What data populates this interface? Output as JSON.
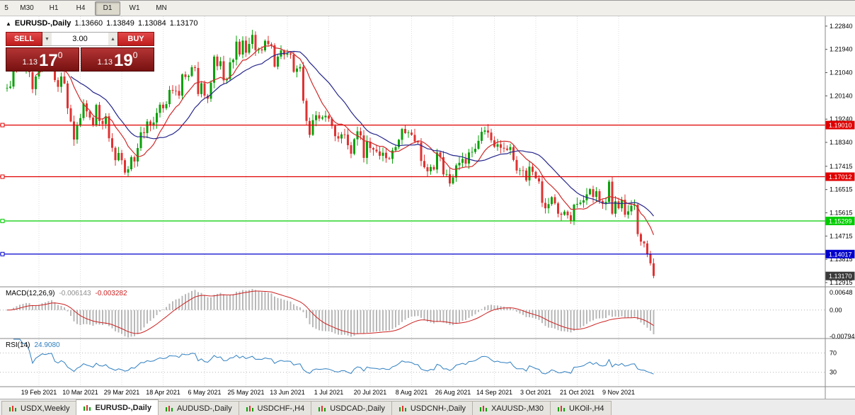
{
  "toolbar": {
    "timeframes": [
      {
        "label": "5",
        "active": false
      },
      {
        "label": "M30",
        "active": false
      },
      {
        "label": "H1",
        "active": false
      },
      {
        "label": "H4",
        "active": false
      },
      {
        "label": "D1",
        "active": true
      },
      {
        "label": "W1",
        "active": false
      },
      {
        "label": "MN",
        "active": false
      }
    ]
  },
  "chart_header": {
    "icon": "▲",
    "title": "EURUSD-,Daily",
    "open": "1.13660",
    "high": "1.13849",
    "low": "1.13084",
    "close": "1.13170"
  },
  "trade_widget": {
    "sell_label": "SELL",
    "buy_label": "BUY",
    "volume": "3.00",
    "spinner_down": "▼",
    "spinner_up": "▲",
    "sell_price": {
      "big": "1.13",
      "pips": "17",
      "pipette": "0"
    },
    "buy_price": {
      "big": "1.13",
      "pips": "19",
      "pipette": "0"
    }
  },
  "price_axis_ticks": [
    "1.22840",
    "1.21940",
    "1.21040",
    "1.20140",
    "1.19240",
    "1.18340",
    "1.17415",
    "1.16515",
    "1.15615",
    "1.14715",
    "1.13815",
    "1.12915"
  ],
  "date_axis_labels": [
    {
      "text": "19 Feb 2021",
      "i": 10
    },
    {
      "text": "10 Mar 2021",
      "i": 23
    },
    {
      "text": "29 Mar 2021",
      "i": 36
    },
    {
      "text": "18 Apr 2021",
      "i": 49
    },
    {
      "text": "6 May 2021",
      "i": 62
    },
    {
      "text": "25 May 2021",
      "i": 75
    },
    {
      "text": "13 Jun 2021",
      "i": 88
    },
    {
      "text": "1 Jul 2021",
      "i": 101
    },
    {
      "text": "20 Jul 2021",
      "i": 114
    },
    {
      "text": "8 Aug 2021",
      "i": 127
    },
    {
      "text": "26 Aug 2021",
      "i": 140
    },
    {
      "text": "14 Sep 2021",
      "i": 153
    },
    {
      "text": "3 Oct 2021",
      "i": 166
    },
    {
      "text": "21 Oct 2021",
      "i": 179
    },
    {
      "text": "9 Nov 2021",
      "i": 192
    }
  ],
  "hlines": [
    {
      "price": 1.1901,
      "label": "1.19010",
      "color": "#e00000"
    },
    {
      "price": 1.17012,
      "label": "1.17012",
      "color": "#e00000"
    },
    {
      "price": 1.15299,
      "label": "1.15299",
      "color": "#00cc00"
    },
    {
      "price": 1.14017,
      "label": "1.14017",
      "color": "#0000cc"
    }
  ],
  "current_price_tag": {
    "label": "1.13170",
    "price": 1.1317,
    "color": "#3a3a3a"
  },
  "macd_panel": {
    "title": "MACD(12,26,9)",
    "macd_value": "-0.006143",
    "signal_value": "-0.003282",
    "axis_labels": [
      "0.00648",
      "0.00",
      "-0.00794"
    ]
  },
  "rsi_panel": {
    "title": "RSI(14)",
    "value": "24.9080",
    "level_labels": [
      "70",
      "30"
    ]
  },
  "tabs": [
    {
      "label": "USDX,Weekly",
      "active": false
    },
    {
      "label": "EURUSD-,Daily",
      "active": true
    },
    {
      "label": "AUDUSD-,Daily",
      "active": false
    },
    {
      "label": "USDCHF-,H4",
      "active": false
    },
    {
      "label": "USDCAD-,Daily",
      "active": false
    },
    {
      "label": "USDCNH-,Daily",
      "active": false
    },
    {
      "label": "XAUUSD-,M30",
      "active": false
    },
    {
      "label": "UKOil-,H4",
      "active": false
    }
  ],
  "colors": {
    "up": "#0aa10a",
    "down": "#e03232",
    "ma_fast": "#d02a2a",
    "ma_slow": "#26268c",
    "macd_hist": "#b8b8b8",
    "macd_signal": "#cc2222",
    "rsi_line": "#2f7fc1",
    "grid": "#dcdcdc",
    "separator": "#8a8a8a",
    "axis_text": "#000000"
  },
  "chart_data": {
    "type": "candlestick",
    "symbol": "EURUSD-",
    "timeframe": "Daily",
    "price_range": [
      1.1275,
      1.2322
    ],
    "last_bar": {
      "open": 1.1366,
      "high": 1.13849,
      "low": 1.13084,
      "close": 1.1317
    },
    "closes": [
      1.2045,
      1.205,
      1.212,
      1.2119,
      1.2129,
      1.212,
      1.2128,
      1.2106,
      1.204,
      1.2089,
      1.2118,
      1.2157,
      1.215,
      1.2168,
      1.2175,
      1.2075,
      1.2049,
      1.2089,
      1.2062,
      1.1966,
      1.1915,
      1.1845,
      1.1899,
      1.1928,
      1.1985,
      1.1954,
      1.193,
      1.19,
      1.1979,
      1.1917,
      1.1905,
      1.1935,
      1.185,
      1.1813,
      1.1765,
      1.1793,
      1.1765,
      1.1717,
      1.173,
      1.1777,
      1.176,
      1.1812,
      1.1873,
      1.187,
      1.1915,
      1.1899,
      1.1911,
      1.1948,
      1.198,
      1.1966,
      1.1982,
      1.2037,
      1.2034,
      1.2033,
      1.2015,
      1.2097,
      1.2087,
      1.2091,
      1.2125,
      1.2122,
      1.2021,
      1.2063,
      1.2015,
      1.2003,
      1.2065,
      1.2166,
      1.2129,
      1.2148,
      1.2074,
      1.2079,
      1.2144,
      1.2154,
      1.2224,
      1.2174,
      1.2228,
      1.2181,
      1.2215,
      1.225,
      1.2191,
      1.2194,
      1.219,
      1.2227,
      1.2214,
      1.221,
      1.2127,
      1.2166,
      1.219,
      1.2173,
      1.2178,
      1.2174,
      1.2107,
      1.212,
      1.2126,
      1.1995,
      1.1917,
      1.1863,
      1.192,
      1.1939,
      1.1926,
      1.1931,
      1.1937,
      1.1926,
      1.1898,
      1.1858,
      1.1849,
      1.1865,
      1.1864,
      1.1823,
      1.179,
      1.1846,
      1.1877,
      1.1861,
      1.1774,
      1.1837,
      1.1812,
      1.1806,
      1.1799,
      1.1782,
      1.1794,
      1.1773,
      1.177,
      1.1803,
      1.1816,
      1.1844,
      1.1886,
      1.187,
      1.1872,
      1.1863,
      1.1837,
      1.1834,
      1.1762,
      1.1738,
      1.1722,
      1.1739,
      1.1729,
      1.1795,
      1.1777,
      1.171,
      1.1711,
      1.1675,
      1.1698,
      1.1745,
      1.1755,
      1.177,
      1.1752,
      1.1795,
      1.1797,
      1.1809,
      1.184,
      1.1875,
      1.188,
      1.1872,
      1.1842,
      1.1817,
      1.1827,
      1.1813,
      1.181,
      1.1805,
      1.1816,
      1.1766,
      1.1725,
      1.1726,
      1.1725,
      1.1687,
      1.174,
      1.172,
      1.1695,
      1.1683,
      1.16,
      1.1579,
      1.1595,
      1.1622,
      1.1598,
      1.1558,
      1.1554,
      1.1566,
      1.1552,
      1.153,
      1.1593,
      1.1596,
      1.1601,
      1.161,
      1.1633,
      1.1653,
      1.1623,
      1.1645,
      1.1607,
      1.1596,
      1.1604,
      1.1682,
      1.1558,
      1.1606,
      1.1579,
      1.1612,
      1.1554,
      1.1567,
      1.1589,
      1.1593,
      1.1479,
      1.145,
      1.1443,
      1.1401,
      1.1366,
      1.1317
    ],
    "overlays": [
      {
        "name": "ma-fast",
        "period": 10,
        "color": "#d02a2a"
      },
      {
        "name": "ma-slow",
        "period": 21,
        "color": "#26268c"
      }
    ],
    "macd": {
      "fast": 12,
      "slow": 26,
      "signal": 9,
      "range": [
        -0.00794,
        0.00648
      ]
    },
    "rsi": {
      "period": 14,
      "levels": [
        30,
        70
      ]
    }
  }
}
